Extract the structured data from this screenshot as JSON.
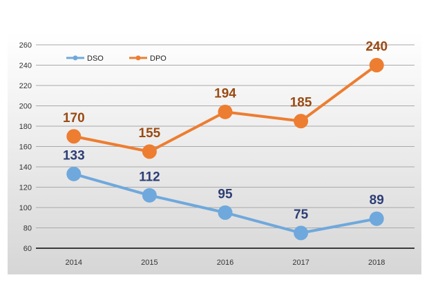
{
  "chart_data": {
    "type": "line",
    "title": "",
    "xlabel": "",
    "ylabel": "",
    "categories": [
      "2014",
      "2015",
      "2016",
      "2017",
      "2018"
    ],
    "ylim": [
      60,
      260
    ],
    "yticks": [
      60,
      80,
      100,
      120,
      140,
      160,
      180,
      200,
      220,
      240,
      260
    ],
    "grid": true,
    "legend_position": "top-left",
    "series": [
      {
        "name": "DSO",
        "color": "#6fa8dc",
        "label_color": "#2c3e75",
        "values": [
          133,
          112,
          95,
          75,
          89
        ]
      },
      {
        "name": "DPO",
        "color": "#ed7d31",
        "label_color": "#9a4a12",
        "values": [
          170,
          155,
          194,
          185,
          240
        ]
      }
    ]
  },
  "colors": {
    "panel_top": "#ffffff",
    "panel_bottom": "#d6d6d6",
    "grid": "#a8a8a8",
    "axis": "#3a3a3a"
  }
}
